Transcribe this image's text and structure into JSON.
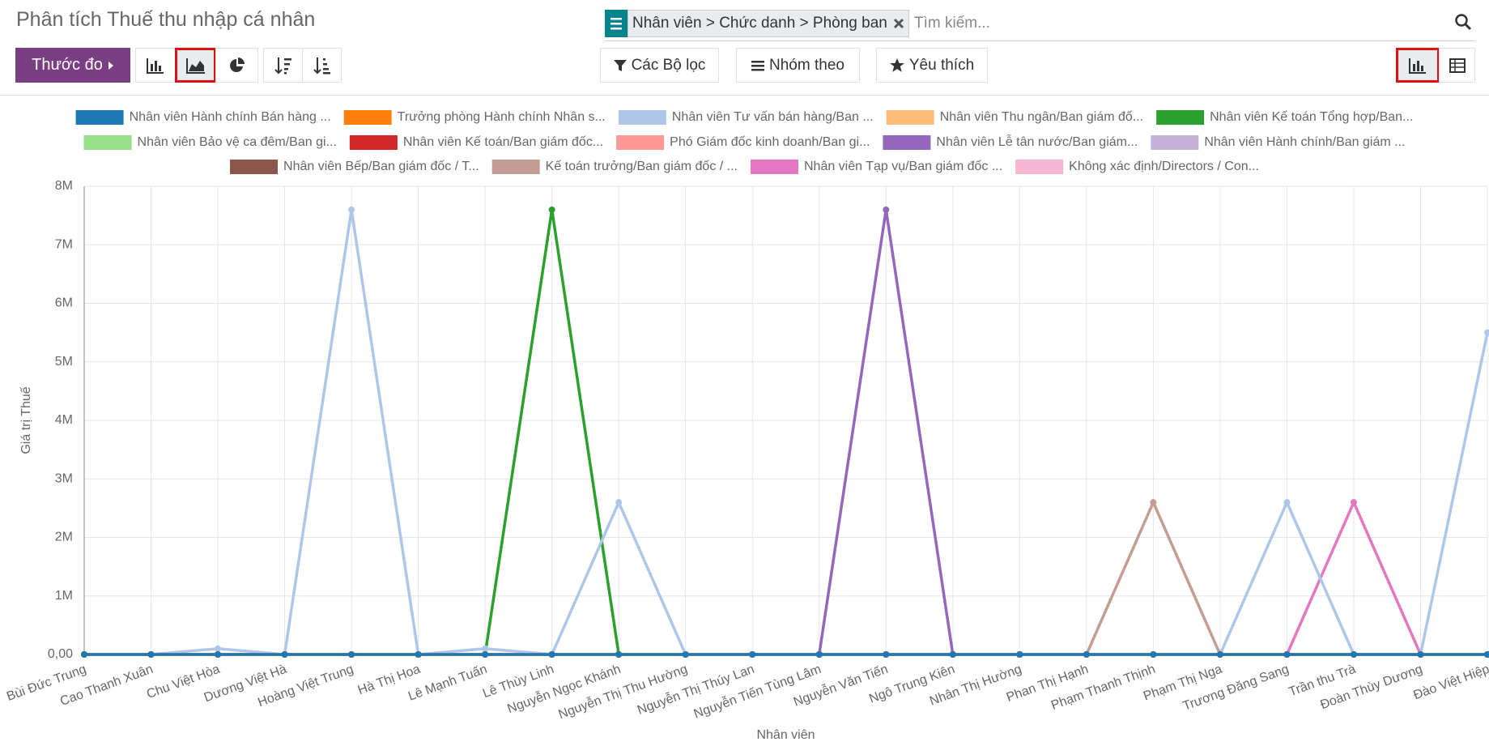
{
  "header": {
    "title": "Phân tích Thuế thu nhập cá nhân",
    "search": {
      "facet": "Nhân viên > Chức danh > Phòng ban",
      "placeholder": "Tìm kiếm..."
    }
  },
  "toolbar": {
    "measure_button": "Thước đo",
    "filters": "Các Bộ lọc",
    "group_by": "Nhóm theo",
    "favorites": "Yêu thích"
  },
  "chart_data": {
    "type": "line",
    "x_label": "Nhân viên",
    "y_label": "Giá trị Thuế",
    "categories": [
      "Bùi Đức Trung",
      "Cao Thanh Xuân",
      "Chu Việt Hòa",
      "Dương Việt Hà",
      "Hoàng Việt Trung",
      "Hà Thị Hoa",
      "Lê Mạnh Tuấn",
      "Lê Thùy Linh",
      "Nguyễn Ngọc Khánh",
      "Nguyễn Thị Thu Hường",
      "Nguyễn Thị Thúy Lan",
      "Nguyễn Tiến Tùng Lâm",
      "Nguyễn Văn Tiến",
      "Ngô Trung Kiên",
      "Nhân Thị Hường",
      "Phan Thị Hạnh",
      "Phạm Thanh Thịnh",
      "Phạm Thị Nga",
      "Trương Đăng Sang",
      "Trần thu Trà",
      "Đoàn Thùy Dương",
      "Đào Việt Hiệp"
    ],
    "ylim": [
      0,
      8000000
    ],
    "yticks": [
      {
        "value": 0,
        "label": "0,00"
      },
      {
        "value": 1000000,
        "label": "1M"
      },
      {
        "value": 2000000,
        "label": "2M"
      },
      {
        "value": 3000000,
        "label": "3M"
      },
      {
        "value": 4000000,
        "label": "4M"
      },
      {
        "value": 5000000,
        "label": "5M"
      },
      {
        "value": 6000000,
        "label": "6M"
      },
      {
        "value": 7000000,
        "label": "7M"
      },
      {
        "value": 8000000,
        "label": "8M"
      }
    ],
    "grid": true,
    "legend": "top",
    "series": [
      {
        "name": "Nhân viên Hành chính Bán hàng ...",
        "color": "#1f77b4",
        "values": [
          0,
          0,
          0,
          0,
          0,
          0,
          0,
          0,
          0,
          0,
          0,
          0,
          0,
          0,
          0,
          0,
          0,
          0,
          0,
          0,
          0,
          0
        ]
      },
      {
        "name": "Trưởng phòng Hành chính Nhân s...",
        "color": "#ff7f0e",
        "values": [
          0,
          0,
          0,
          0,
          0,
          0,
          0,
          0,
          0,
          0,
          0,
          0,
          0,
          0,
          0,
          0,
          0,
          0,
          0,
          0,
          0,
          0
        ]
      },
      {
        "name": "Nhân viên Tư vấn bán hàng/Ban ...",
        "color": "#aec7e8",
        "values": [
          0,
          0,
          100000,
          0,
          7600000,
          0,
          100000,
          0,
          2600000,
          0,
          0,
          0,
          0,
          0,
          0,
          0,
          0,
          0,
          2600000,
          0,
          0,
          5500000
        ]
      },
      {
        "name": "Nhân viên Thu ngân/Ban giám đố...",
        "color": "#ffbb78",
        "values": [
          0,
          0,
          0,
          0,
          0,
          0,
          0,
          0,
          0,
          0,
          0,
          0,
          0,
          0,
          0,
          0,
          0,
          0,
          0,
          0,
          0,
          0
        ]
      },
      {
        "name": "Nhân viên Kế toán Tổng hợp/Ban...",
        "color": "#2ca02c",
        "values": [
          0,
          0,
          0,
          0,
          0,
          0,
          0,
          7600000,
          0,
          0,
          0,
          0,
          0,
          0,
          0,
          0,
          0,
          0,
          0,
          0,
          0,
          0
        ]
      },
      {
        "name": "Nhân viên Bảo vệ ca đêm/Ban gi...",
        "color": "#98df8a",
        "values": [
          0,
          0,
          0,
          0,
          0,
          0,
          0,
          0,
          0,
          0,
          0,
          0,
          0,
          0,
          0,
          0,
          0,
          0,
          0,
          0,
          0,
          0
        ]
      },
      {
        "name": "Nhân viên Kế toán/Ban giám đốc...",
        "color": "#d62728",
        "values": [
          0,
          0,
          0,
          0,
          0,
          0,
          0,
          0,
          0,
          0,
          0,
          0,
          0,
          0,
          0,
          0,
          0,
          0,
          0,
          0,
          0,
          0
        ]
      },
      {
        "name": "Phó Giám đốc kinh doanh/Ban gi...",
        "color": "#ff9896",
        "values": [
          0,
          0,
          0,
          0,
          0,
          0,
          0,
          0,
          0,
          0,
          0,
          0,
          0,
          0,
          0,
          0,
          0,
          0,
          0,
          0,
          0,
          0
        ]
      },
      {
        "name": "Nhân viên Lễ tân nước/Ban giám...",
        "color": "#9467bd",
        "values": [
          0,
          0,
          0,
          0,
          0,
          0,
          0,
          0,
          0,
          0,
          0,
          0,
          7600000,
          0,
          0,
          0,
          0,
          0,
          0,
          0,
          0,
          0
        ]
      },
      {
        "name": "Nhân viên Hành chính/Ban giám ...",
        "color": "#c5b0d5",
        "values": [
          0,
          0,
          0,
          0,
          0,
          0,
          0,
          0,
          0,
          0,
          0,
          0,
          0,
          0,
          0,
          0,
          0,
          0,
          0,
          0,
          0,
          0
        ]
      },
      {
        "name": "Nhân viên Bếp/Ban giám đốc / T...",
        "color": "#8c564b",
        "values": [
          0,
          0,
          0,
          0,
          0,
          0,
          0,
          0,
          0,
          0,
          0,
          0,
          0,
          0,
          0,
          0,
          0,
          0,
          0,
          0,
          0,
          0
        ]
      },
      {
        "name": "Kế toán trưởng/Ban giám đốc / ...",
        "color": "#c49c94",
        "values": [
          0,
          0,
          0,
          0,
          0,
          0,
          0,
          0,
          0,
          0,
          0,
          0,
          0,
          0,
          0,
          0,
          2600000,
          0,
          0,
          0,
          0,
          0
        ]
      },
      {
        "name": "Nhân viên Tạp vụ/Ban giám đốc ...",
        "color": "#e377c2",
        "values": [
          0,
          0,
          0,
          0,
          0,
          0,
          0,
          0,
          0,
          0,
          0,
          0,
          0,
          0,
          0,
          0,
          0,
          0,
          0,
          2600000,
          0,
          0
        ]
      },
      {
        "name": "Không xác định/Directors / Con...",
        "color": "#f7b6d2",
        "values": [
          0,
          0,
          0,
          0,
          0,
          0,
          0,
          0,
          0,
          0,
          0,
          0,
          0,
          0,
          0,
          0,
          0,
          0,
          0,
          0,
          0,
          0
        ]
      }
    ]
  }
}
